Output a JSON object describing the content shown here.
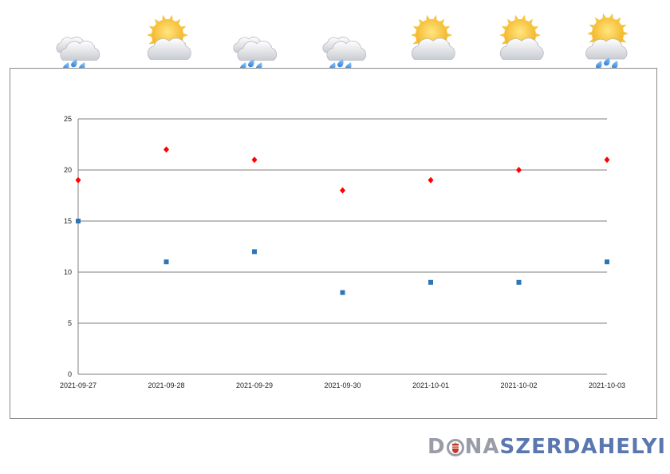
{
  "weather_icons": [
    {
      "date": "2021-09-27",
      "icon": "cloud-rain-icon"
    },
    {
      "date": "2021-09-28",
      "icon": "sun-cloud-icon"
    },
    {
      "date": "2021-09-29",
      "icon": "cloud-rain-icon"
    },
    {
      "date": "2021-09-30",
      "icon": "cloud-rain-icon"
    },
    {
      "date": "2021-10-01",
      "icon": "sun-cloud-icon"
    },
    {
      "date": "2021-10-02",
      "icon": "sun-cloud-icon"
    },
    {
      "date": "2021-10-03",
      "icon": "sun-cloud-rain-icon"
    }
  ],
  "chart_data": {
    "type": "scatter",
    "title": "",
    "xlabel": "",
    "ylabel": "",
    "categories": [
      "2021-09-27",
      "2021-09-28",
      "2021-09-29",
      "2021-09-30",
      "2021-10-01",
      "2021-10-02",
      "2021-10-03"
    ],
    "ylim": [
      0,
      25
    ],
    "yticks": [
      0,
      5,
      10,
      15,
      20,
      25
    ],
    "grid": true,
    "series": [
      {
        "marker": "diamond",
        "color": "#ff0000",
        "values": [
          19,
          22,
          21,
          18,
          19,
          20,
          21
        ]
      },
      {
        "marker": "square",
        "color": "#2e75b6",
        "values": [
          15,
          11,
          12,
          8,
          9,
          9,
          11
        ]
      }
    ]
  },
  "logo": {
    "part1": "D",
    "part2": "NA",
    "part3": "SZERDAHELYI"
  }
}
